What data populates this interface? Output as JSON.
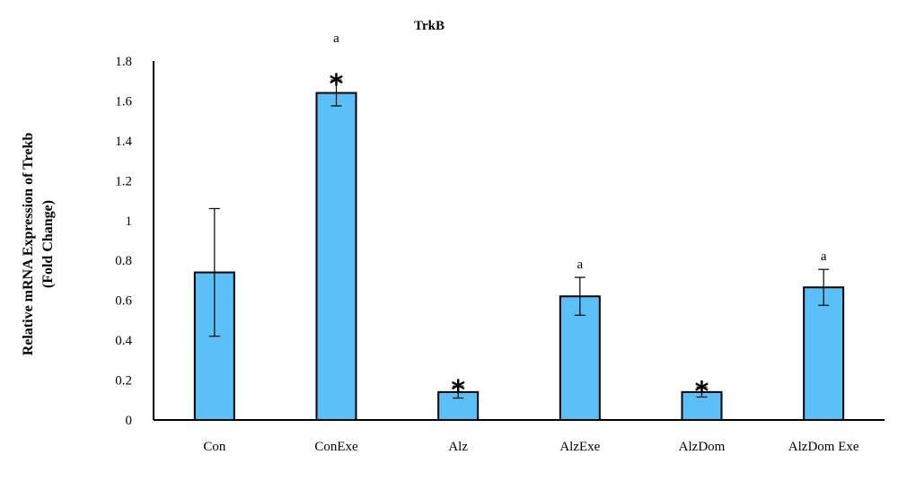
{
  "chart_data": {
    "type": "bar",
    "title": "TrkB",
    "xlabel": "",
    "ylabel_lines": [
      "Relative mRNA Expression of Trekb",
      "(Fold Change)"
    ],
    "ylim": [
      0,
      1.8
    ],
    "yticks": [
      0,
      0.2,
      0.4,
      0.6,
      0.8,
      1,
      1.2,
      1.4,
      1.6,
      1.8
    ],
    "ytick_labels": [
      "0",
      "0.2",
      "0.4",
      "0.6",
      "0.8",
      "1",
      "1.2",
      "1.4",
      "1.6",
      "1.8"
    ],
    "categories": [
      "Con",
      "ConExe",
      "Alz",
      "AlzExe",
      "AlzDom",
      "AlzDom Exe"
    ],
    "values": [
      0.74,
      1.64,
      0.14,
      0.62,
      0.14,
      0.665
    ],
    "errors": [
      0.32,
      0.065,
      0.03,
      0.095,
      0.025,
      0.09
    ],
    "bar_color": "#5BC0F8",
    "bar_edge_color": "#000000",
    "annotations": [
      {
        "category": "ConExe",
        "star": "*",
        "letter": "a"
      },
      {
        "category": "Alz",
        "star": "*",
        "letter": ""
      },
      {
        "category": "AlzExe",
        "star": "",
        "letter": "a"
      },
      {
        "category": "AlzDom",
        "star": "*",
        "letter": ""
      },
      {
        "category": "AlzDom Exe",
        "star": "",
        "letter": "a"
      }
    ],
    "grid": false
  }
}
